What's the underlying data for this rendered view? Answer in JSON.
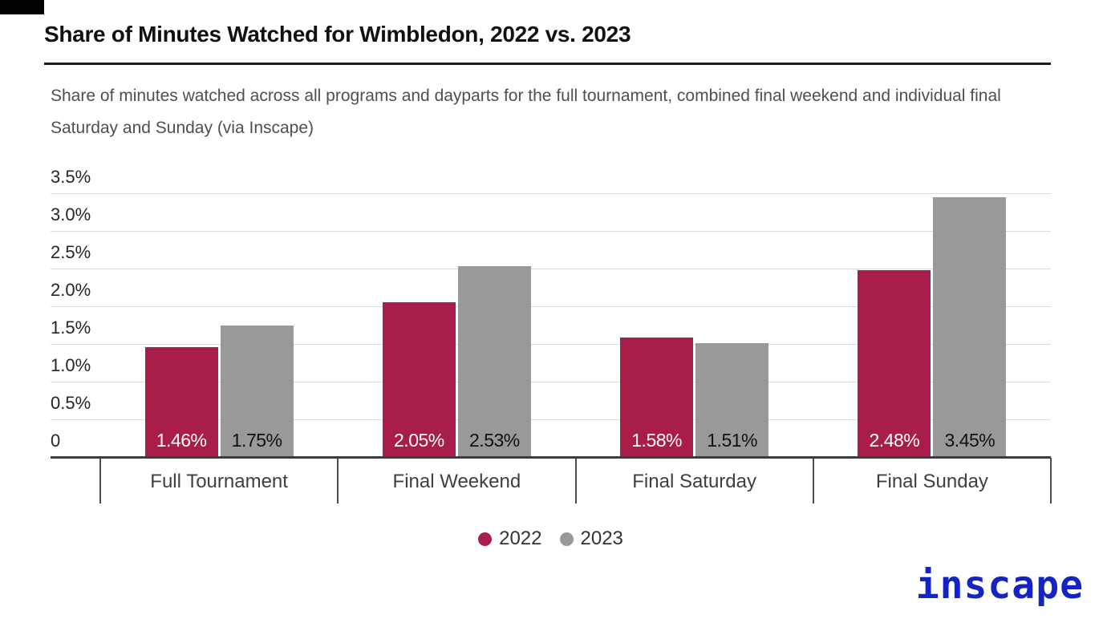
{
  "header": {
    "title": "Share of Minutes Watched for Wimbledon, 2022 vs. 2023",
    "subtitle": "Share of minutes watched across all programs and dayparts for the full tournament, combined final weekend and individual final Saturday and Sunday (via Inscape)"
  },
  "chart_data": {
    "type": "bar",
    "title": "Share of Minutes Watched for Wimbledon, 2022 vs. 2023",
    "categories": [
      "Full Tournament",
      "Final Weekend",
      "Final Saturday",
      "Final Sunday"
    ],
    "series": [
      {
        "name": "2022",
        "color": "#A81E48",
        "label_color": "#FFFFFF",
        "values": [
          1.46,
          2.05,
          1.58,
          2.48
        ],
        "labels": [
          "1.46%",
          "2.05%",
          "1.58%",
          "2.48%"
        ]
      },
      {
        "name": "2023",
        "color": "#999999",
        "label_color": "#111111",
        "values": [
          1.75,
          2.53,
          1.51,
          3.45
        ],
        "labels": [
          "1.75%",
          "2.53%",
          "1.51%",
          "3.45%"
        ]
      }
    ],
    "xlabel": "",
    "ylabel": "",
    "ylim": [
      0,
      3.5
    ],
    "y_ticks": [
      "3.5%",
      "3.0%",
      "2.5%",
      "2.0%",
      "1.5%",
      "1.0%",
      "0.5%",
      "0"
    ],
    "y_tick_values": [
      3.5,
      3.0,
      2.5,
      2.0,
      1.5,
      1.0,
      0.5,
      0
    ],
    "grid": true,
    "legend_position": "bottom-center",
    "value_label_position": "inside-bottom"
  },
  "legend": {
    "items": [
      {
        "label": "2022",
        "color": "#A81E48"
      },
      {
        "label": "2023",
        "color": "#999999"
      }
    ]
  },
  "branding": {
    "logo_text": "inscape",
    "logo_color": "#1323C4"
  },
  "colors": {
    "grid": "#DBDBDB",
    "axis": "#3D3D3D",
    "separator": "#4D4D4D",
    "title": "#111111",
    "subtitle": "#4F4F4F",
    "tick_label": "#262626",
    "category_label": "#3F3F3F",
    "legend_label": "#333333",
    "background": "#FFFFFF"
  }
}
